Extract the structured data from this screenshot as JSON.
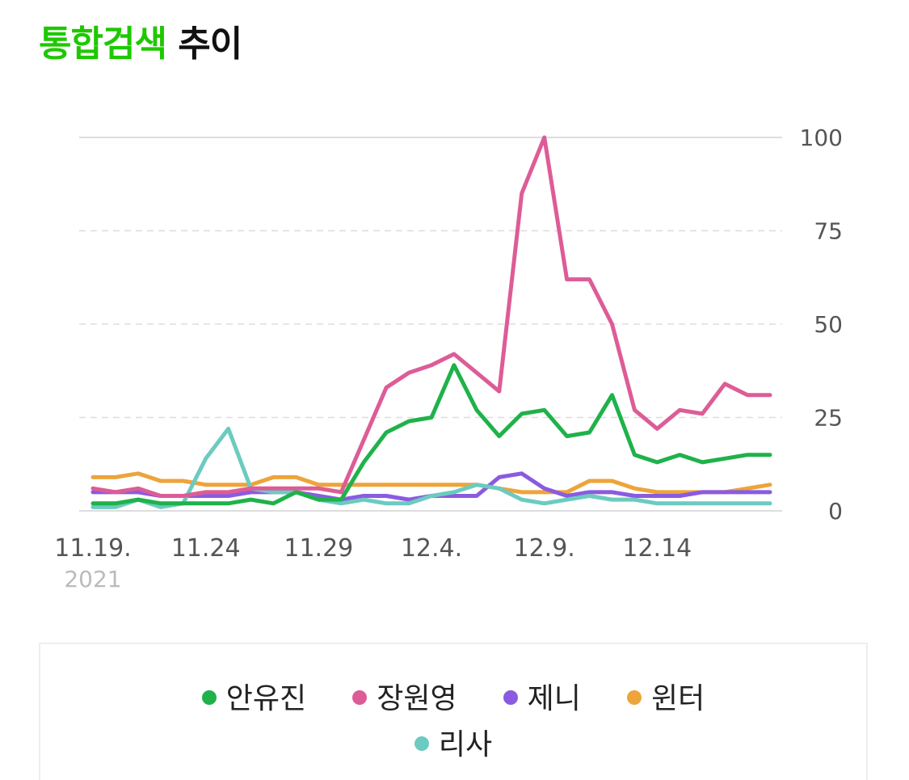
{
  "header": {
    "title_accent": "통합검색",
    "title_rest": "추이"
  },
  "colors": {
    "accent": "#1ec800",
    "grid": "#dddddd"
  },
  "chart_data": {
    "type": "line",
    "title": "통합검색 추이",
    "xlabel": "",
    "ylabel": "",
    "ylim": [
      0,
      100
    ],
    "yticks": [
      0,
      25,
      50,
      75,
      100
    ],
    "x_tick_labels": [
      {
        "index": 0,
        "label": "11.19."
      },
      {
        "index": 5,
        "label": "11.24"
      },
      {
        "index": 10,
        "label": "11.29"
      },
      {
        "index": 15,
        "label": "12.4."
      },
      {
        "index": 20,
        "label": "12.9."
      },
      {
        "index": 25,
        "label": "12.14"
      }
    ],
    "year_label": "2021",
    "x": [
      "11.19",
      "11.20",
      "11.21",
      "11.22",
      "11.23",
      "11.24",
      "11.25",
      "11.26",
      "11.27",
      "11.28",
      "11.29",
      "11.30",
      "12.1",
      "12.2",
      "12.3",
      "12.4",
      "12.5",
      "12.6",
      "12.7",
      "12.8",
      "12.9",
      "12.10",
      "12.11",
      "12.12",
      "12.13",
      "12.14",
      "12.15",
      "12.16",
      "12.17",
      "12.18",
      "12.19"
    ],
    "series": [
      {
        "name": "안유진",
        "color": "#1fb24a",
        "values": [
          2,
          2,
          3,
          2,
          2,
          2,
          2,
          3,
          2,
          5,
          3,
          3,
          13,
          21,
          24,
          25,
          39,
          27,
          20,
          26,
          27,
          20,
          21,
          31,
          15,
          13,
          15,
          13,
          14,
          15,
          15
        ]
      },
      {
        "name": "장원영",
        "color": "#dd5c97",
        "values": [
          6,
          5,
          6,
          4,
          4,
          5,
          5,
          6,
          6,
          6,
          6,
          5,
          19,
          33,
          37,
          39,
          42,
          37,
          32,
          85,
          100,
          62,
          62,
          50,
          27,
          22,
          27,
          26,
          34,
          31,
          31
        ]
      },
      {
        "name": "제니",
        "color": "#8a5be0",
        "values": [
          5,
          5,
          5,
          4,
          4,
          4,
          4,
          5,
          5,
          5,
          4,
          3,
          4,
          4,
          3,
          4,
          4,
          4,
          9,
          10,
          6,
          4,
          5,
          5,
          4,
          4,
          4,
          5,
          5,
          5,
          5
        ]
      },
      {
        "name": "윈터",
        "color": "#eda43b",
        "values": [
          9,
          9,
          10,
          8,
          8,
          7,
          7,
          7,
          9,
          9,
          7,
          7,
          7,
          7,
          7,
          7,
          7,
          7,
          6,
          5,
          5,
          5,
          8,
          8,
          6,
          5,
          5,
          5,
          5,
          6,
          7
        ]
      },
      {
        "name": "리사",
        "color": "#6ccbc0",
        "values": [
          1,
          1,
          3,
          1,
          2,
          14,
          22,
          6,
          5,
          5,
          3,
          2,
          3,
          2,
          2,
          4,
          5,
          7,
          6,
          3,
          2,
          3,
          4,
          3,
          3,
          2,
          2,
          2,
          2,
          2,
          2
        ]
      }
    ],
    "legend_position": "bottom"
  }
}
